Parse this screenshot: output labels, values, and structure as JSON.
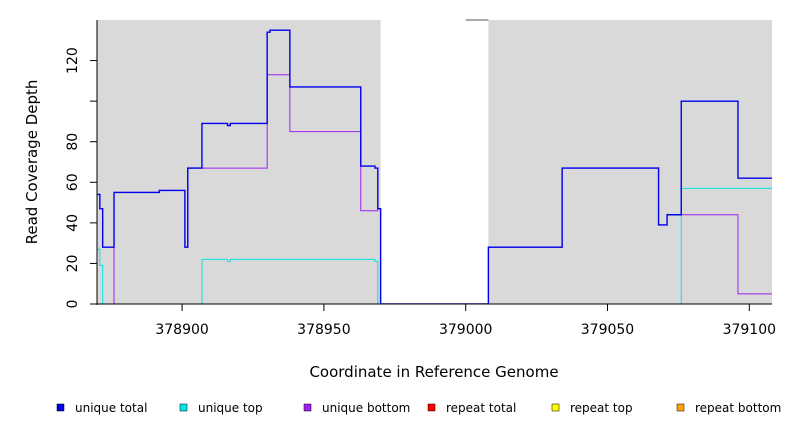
{
  "chart_data": {
    "type": "line",
    "xlabel": "Coordinate in Reference Genome",
    "ylabel": "Read Coverage Depth",
    "xlim": [
      378870,
      379108
    ],
    "ylim": [
      0,
      140
    ],
    "x_ticks": [
      378900,
      378950,
      379000,
      379050,
      379100
    ],
    "x_tick_labels": [
      "378900",
      "378950",
      "379000",
      "379050",
      "379100"
    ],
    "y_ticks": [
      0,
      20,
      40,
      60,
      80,
      120
    ],
    "y_tick_labels": [
      "0",
      "20",
      "40",
      "60",
      "80",
      "120"
    ],
    "grid": false,
    "background_color": "#d9d9d9",
    "unshaded_regions": [
      [
        379000,
        379008
      ]
    ],
    "unshaded_regions_note": "",
    "shaded_background_ranges": [
      [
        378870,
        378970
      ],
      [
        379008,
        379108
      ]
    ],
    "legend_position": "bottom",
    "series": [
      {
        "name": "unique total",
        "color": "#0000ee",
        "points": [
          [
            378870,
            54
          ],
          [
            378871,
            54
          ],
          [
            378871,
            47
          ],
          [
            378872,
            47
          ],
          [
            378872,
            28
          ],
          [
            378876,
            28
          ],
          [
            378876,
            55
          ],
          [
            378892,
            55
          ],
          [
            378892,
            56
          ],
          [
            378901,
            56
          ],
          [
            378901,
            28
          ],
          [
            378902,
            28
          ],
          [
            378902,
            67
          ],
          [
            378907,
            67
          ],
          [
            378907,
            89
          ],
          [
            378916,
            89
          ],
          [
            378916,
            88
          ],
          [
            378917,
            88
          ],
          [
            378917,
            89
          ],
          [
            378930,
            89
          ],
          [
            378930,
            134
          ],
          [
            378931,
            134
          ],
          [
            378931,
            135
          ],
          [
            378938,
            135
          ],
          [
            378938,
            107
          ],
          [
            378963,
            107
          ],
          [
            378963,
            68
          ],
          [
            378968,
            68
          ],
          [
            378968,
            67
          ],
          [
            378969,
            67
          ],
          [
            378969,
            47
          ],
          [
            378970,
            47
          ],
          [
            378970,
            0
          ],
          [
            379008,
            0
          ],
          [
            379008,
            28
          ],
          [
            379034,
            28
          ],
          [
            379034,
            67
          ],
          [
            379068,
            67
          ],
          [
            379068,
            39
          ],
          [
            379071,
            39
          ],
          [
            379071,
            44
          ],
          [
            379076,
            44
          ],
          [
            379076,
            100
          ],
          [
            379096,
            100
          ],
          [
            379096,
            62
          ],
          [
            379108,
            62
          ]
        ]
      },
      {
        "name": "unique top",
        "color": "#00e5e5",
        "points": [
          [
            378870,
            27
          ],
          [
            378871,
            27
          ],
          [
            378871,
            19
          ],
          [
            378872,
            19
          ],
          [
            378872,
            0
          ],
          [
            378907,
            0
          ],
          [
            378907,
            22
          ],
          [
            378916,
            22
          ],
          [
            378916,
            21
          ],
          [
            378917,
            21
          ],
          [
            378917,
            22
          ],
          [
            378968,
            22
          ],
          [
            378968,
            21
          ],
          [
            378969,
            21
          ],
          [
            378969,
            0
          ],
          [
            379076,
            0
          ],
          [
            379076,
            57
          ],
          [
            379108,
            57
          ]
        ]
      },
      {
        "name": "unique bottom",
        "color": "#a020f0",
        "points": [
          [
            378870,
            0
          ],
          [
            378876,
            0
          ],
          [
            378876,
            55
          ],
          [
            378892,
            55
          ],
          [
            378892,
            56
          ],
          [
            378901,
            56
          ],
          [
            378901,
            28
          ],
          [
            378902,
            28
          ],
          [
            378902,
            67
          ],
          [
            378930,
            67
          ],
          [
            378930,
            113
          ],
          [
            378938,
            113
          ],
          [
            378938,
            85
          ],
          [
            378963,
            85
          ],
          [
            378963,
            46
          ],
          [
            378969,
            46
          ],
          [
            378969,
            47
          ],
          [
            378970,
            47
          ],
          [
            378970,
            0
          ],
          [
            379008,
            0
          ],
          [
            379008,
            28
          ],
          [
            379034,
            28
          ],
          [
            379034,
            67
          ],
          [
            379068,
            67
          ],
          [
            379068,
            39
          ],
          [
            379071,
            39
          ],
          [
            379071,
            44
          ],
          [
            379096,
            44
          ],
          [
            379096,
            5
          ],
          [
            379108,
            5
          ]
        ]
      },
      {
        "name": "repeat total",
        "color": "#ff0000",
        "points": [
          [
            378870,
            0
          ],
          [
            379108,
            0
          ]
        ]
      },
      {
        "name": "repeat top",
        "color": "#ffff00",
        "points": [
          [
            378870,
            0
          ],
          [
            379108,
            0
          ]
        ]
      },
      {
        "name": "repeat bottom",
        "color": "#ffa500",
        "points": [
          [
            378870,
            0
          ],
          [
            379108,
            0
          ]
        ]
      }
    ]
  }
}
